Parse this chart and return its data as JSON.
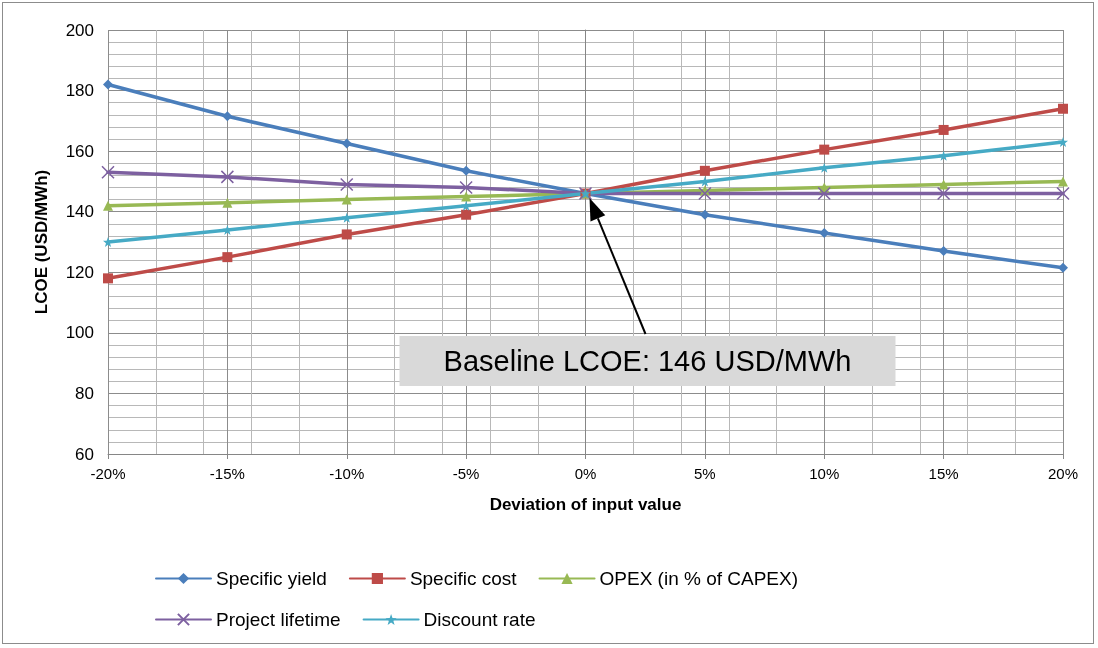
{
  "chart_data": {
    "type": "line",
    "xlabel": "Deviation of input value",
    "ylabel": "LCOE (USD/MWh)",
    "x": [
      -20,
      -15,
      -10,
      -5,
      0,
      5,
      10,
      15,
      20
    ],
    "xlim": [
      -20,
      20
    ],
    "xticks": [
      {
        "value": -20,
        "label": "-20%"
      },
      {
        "value": -15,
        "label": "-15%"
      },
      {
        "value": -10,
        "label": "-10%"
      },
      {
        "value": -5,
        "label": "-5%"
      },
      {
        "value": 0,
        "label": "0%"
      },
      {
        "value": 5,
        "label": "5%"
      },
      {
        "value": 10,
        "label": "10%"
      },
      {
        "value": 15,
        "label": "15%"
      },
      {
        "value": 20,
        "label": "20%"
      }
    ],
    "ylim": [
      60,
      200
    ],
    "yticks": [
      60,
      80,
      100,
      120,
      140,
      160,
      180,
      200
    ],
    "grid": true,
    "legend": "bottom",
    "series": [
      {
        "name": "Specific yield",
        "color": "#4a7ebb",
        "marker": "diamond",
        "values": [
          182,
          171.5,
          162.5,
          153.5,
          146,
          139,
          133,
          127,
          121.5
        ]
      },
      {
        "name": "Specific cost",
        "color": "#be4b48",
        "marker": "square",
        "values": [
          118,
          125,
          132.5,
          139,
          146,
          153.5,
          160.5,
          167,
          174
        ]
      },
      {
        "name": "OPEX (in % of CAPEX)",
        "color": "#98b954",
        "marker": "triangle",
        "values": [
          142,
          143,
          144,
          145,
          146,
          147,
          148,
          149,
          150
        ]
      },
      {
        "name": "Project lifetime",
        "color": "#7d60a0",
        "marker": "cross",
        "values": [
          153,
          151.5,
          149,
          148,
          146,
          146,
          146,
          146,
          146
        ]
      },
      {
        "name": "Discount rate",
        "color": "#46aac5",
        "marker": "star",
        "values": [
          130,
          134,
          138,
          142,
          146,
          150,
          154.5,
          158.5,
          163
        ]
      }
    ],
    "annotations": [
      "Baseline LCOE: 146 USD/MWh"
    ]
  }
}
